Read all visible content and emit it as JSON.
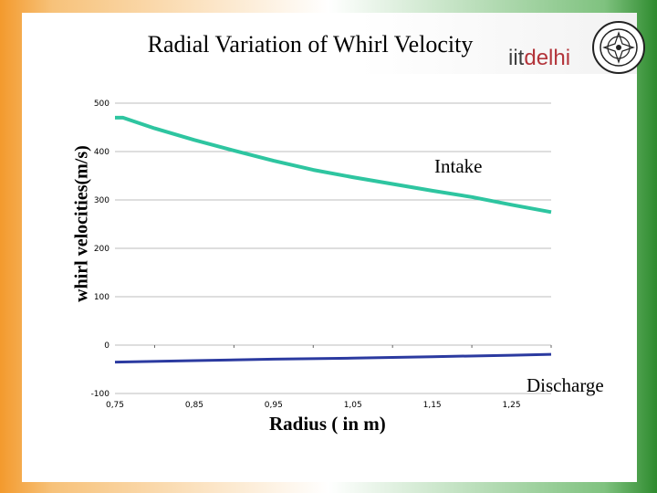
{
  "slide": {
    "title": "Radial Variation of Whirl Velocity",
    "brand_part1": "iit",
    "brand_part2": "delhi",
    "colors": {
      "saffron": "#f39a2d",
      "green": "#2e8b2e",
      "intake_line": "#2ec5a0",
      "discharge_line": "#2b3aa0",
      "brand_red": "#b3343a"
    },
    "icons": [
      "iit-delhi-seal-icon"
    ]
  },
  "chart_data": {
    "type": "line",
    "title": "",
    "xlabel": "Radius ( in m)",
    "ylabel": "whirl velocities(m/s)",
    "xlim": [
      0.75,
      1.3
    ],
    "ylim": [
      -100,
      500
    ],
    "x_ticks": [
      "0,75",
      "0,85",
      "0,95",
      "1,05",
      "1,15",
      "1,25"
    ],
    "y_ticks": [
      "-100",
      "0",
      "100",
      "200",
      "300",
      "400",
      "500"
    ],
    "grid": "horizontal",
    "annotations": [
      "Intake",
      "Discharge"
    ],
    "series": [
      {
        "name": "Intake",
        "color": "#2ec5a0",
        "x": [
          0.75,
          0.76,
          0.8,
          0.85,
          0.9,
          0.95,
          1.0,
          1.05,
          1.1,
          1.15,
          1.2,
          1.25,
          1.3
        ],
        "values": [
          470,
          470,
          448,
          424,
          402,
          381,
          362,
          347,
          333,
          319,
          306,
          290,
          275
        ]
      },
      {
        "name": "Discharge",
        "color": "#2b3aa0",
        "x": [
          0.75,
          0.85,
          0.95,
          1.05,
          1.15,
          1.25,
          1.3
        ],
        "values": [
          -35,
          -32,
          -29,
          -27,
          -24,
          -21,
          -19
        ]
      }
    ]
  }
}
